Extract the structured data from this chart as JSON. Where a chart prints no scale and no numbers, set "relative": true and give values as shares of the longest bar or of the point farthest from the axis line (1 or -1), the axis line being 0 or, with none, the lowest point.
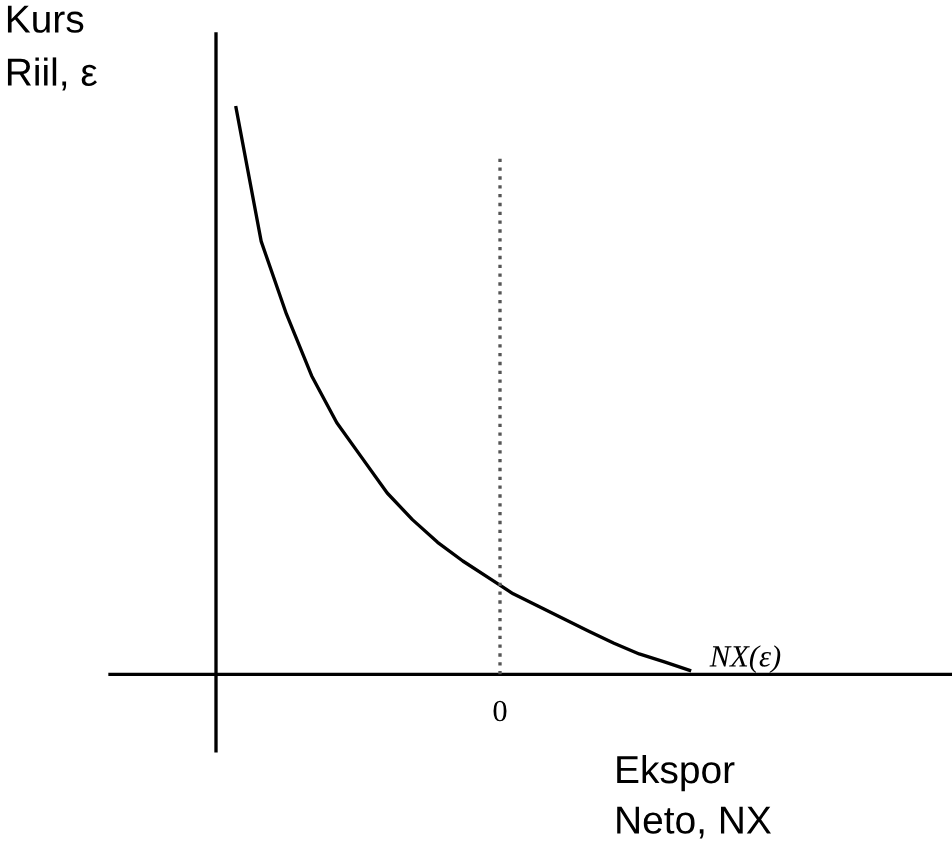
{
  "chart_data": {
    "type": "line",
    "relative": true,
    "ylabel": "Kurs\nRiil, ε",
    "xlabel": "Ekspor\nNeto, NX",
    "categories": [
      null,
      null,
      null,
      null,
      null,
      null,
      null,
      null,
      null,
      null,
      null,
      null,
      null,
      null,
      null,
      null,
      null,
      null,
      null
    ],
    "series": [
      {
        "color": "#000000",
        "values": [
          1,
          0.764,
          0.636,
          0.527,
          0.444,
          0.382,
          0.32,
          0.273,
          0.233,
          0.2,
          0.171,
          0.142,
          0.12,
          0.098,
          0.076,
          0.055,
          0.036,
          0.022,
          0.007
        ]
      }
    ],
    "annotations": [
      "0",
      "NX(ε)"
    ],
    "marker": "none",
    "line_style": "solid",
    "grid": false,
    "legend": false
  }
}
